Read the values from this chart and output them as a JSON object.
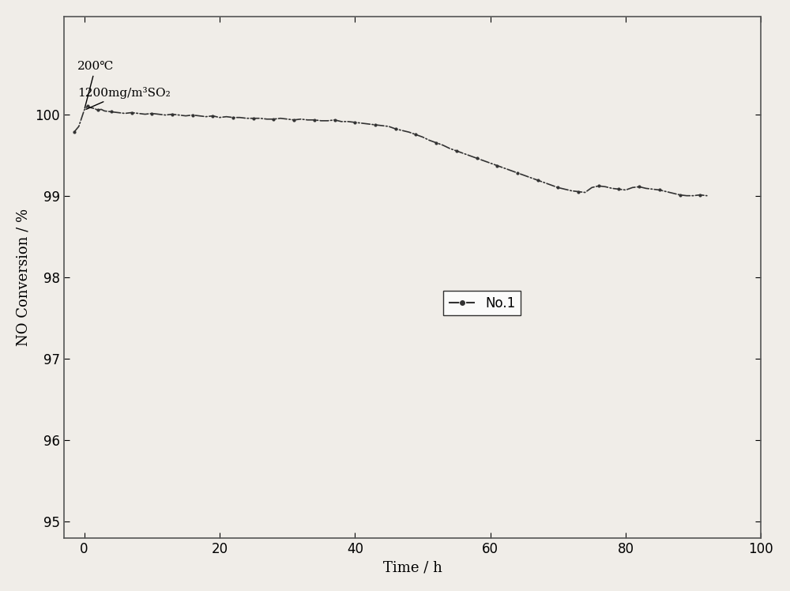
{
  "xlabel": "Time / h",
  "ylabel": "NO Conversion / %",
  "xlim": [
    -3,
    100
  ],
  "ylim": [
    94.8,
    101.2
  ],
  "yticks": [
    95,
    96,
    97,
    98,
    99,
    100
  ],
  "xticks": [
    0,
    20,
    40,
    60,
    80,
    100
  ],
  "annotation1": "200℃",
  "annotation2": "1200mg/m³SO₂",
  "legend_label": "No.1",
  "line_color": "#333333",
  "background_color": "#f0ede8",
  "x_data": [
    -1.5,
    -0.8,
    0,
    0.5,
    1,
    1.5,
    2,
    2.5,
    3,
    4,
    5,
    6,
    7,
    8,
    9,
    10,
    11,
    12,
    13,
    14,
    15,
    16,
    17,
    18,
    19,
    20,
    21,
    22,
    23,
    24,
    25,
    26,
    27,
    28,
    29,
    30,
    31,
    32,
    33,
    34,
    35,
    36,
    37,
    38,
    39,
    40,
    41,
    42,
    43,
    44,
    45,
    46,
    47,
    48,
    49,
    50,
    51,
    52,
    53,
    54,
    55,
    56,
    57,
    58,
    59,
    60,
    61,
    62,
    63,
    64,
    65,
    66,
    67,
    68,
    69,
    70,
    71,
    72,
    73,
    74,
    75,
    76,
    77,
    78,
    79,
    80,
    81,
    82,
    83,
    84,
    85,
    86,
    87,
    88,
    89,
    90,
    91,
    92
  ],
  "y_data": [
    99.78,
    99.85,
    100.05,
    100.1,
    100.08,
    100.07,
    100.05,
    100.06,
    100.04,
    100.03,
    100.02,
    100.01,
    100.02,
    100.01,
    100.0,
    100.01,
    100.0,
    99.99,
    100.0,
    99.99,
    99.98,
    99.99,
    99.98,
    99.97,
    99.98,
    99.96,
    99.97,
    99.96,
    99.96,
    99.95,
    99.95,
    99.95,
    99.94,
    99.94,
    99.95,
    99.94,
    99.93,
    99.94,
    99.93,
    99.93,
    99.92,
    99.92,
    99.93,
    99.91,
    99.91,
    99.9,
    99.89,
    99.88,
    99.87,
    99.86,
    99.85,
    99.82,
    99.8,
    99.78,
    99.75,
    99.72,
    99.68,
    99.65,
    99.62,
    99.58,
    99.55,
    99.52,
    99.49,
    99.46,
    99.43,
    99.4,
    99.37,
    99.34,
    99.31,
    99.28,
    99.25,
    99.22,
    99.19,
    99.16,
    99.13,
    99.1,
    99.08,
    99.06,
    99.05,
    99.04,
    99.1,
    99.12,
    99.11,
    99.09,
    99.08,
    99.07,
    99.1,
    99.11,
    99.09,
    99.08,
    99.07,
    99.05,
    99.03,
    99.01,
    99.0,
    99.0,
    99.01,
    99.0
  ]
}
